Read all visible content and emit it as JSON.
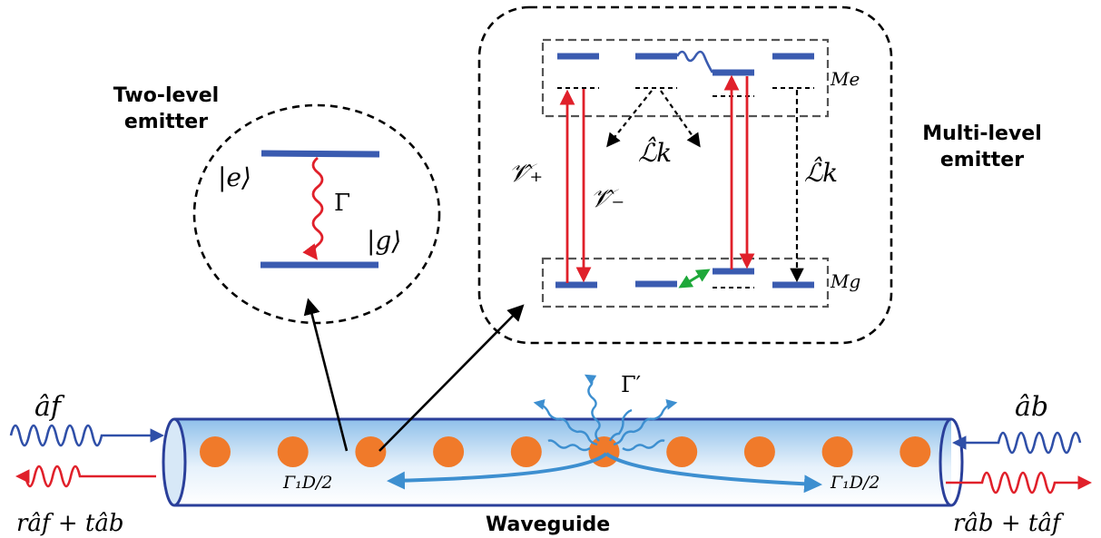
{
  "labels": {
    "two_level_line1": "Two-level",
    "two_level_line2": "emitter",
    "multi_level_line1": "Multi-level",
    "multi_level_line2": "emitter",
    "waveguide": "Waveguide"
  },
  "math": {
    "ket_e": "|e⟩",
    "ket_g": "|g⟩",
    "gamma": "Γ",
    "gamma_prime": "Γ′",
    "gamma_1d_left": "Γ₁D/2",
    "gamma_1d_right": "Γ₁D/2",
    "a_f": "âf",
    "a_b": "âb",
    "out_left": "râf + tâb",
    "out_right": "râb + tâf",
    "v_plus": "𝒱̂₊",
    "v_minus": "𝒱̂₋",
    "l_k_1": "ℒ̂k",
    "l_k_2": "ℒ̂k",
    "m_e": "Me",
    "m_g": "Mg"
  },
  "colors": {
    "level_blue": "#3a5bb0",
    "transition_red": "#e0202a",
    "photon_blue": "#2f4fa8",
    "scatter_blue": "#3d8fd0",
    "atom_orange": "#f07a2a",
    "coupling_green": "#1ea83a",
    "waveguide_fill": "#cfe3f5",
    "waveguide_edge": "#2a3f9a"
  },
  "atoms": {
    "count": 10
  }
}
